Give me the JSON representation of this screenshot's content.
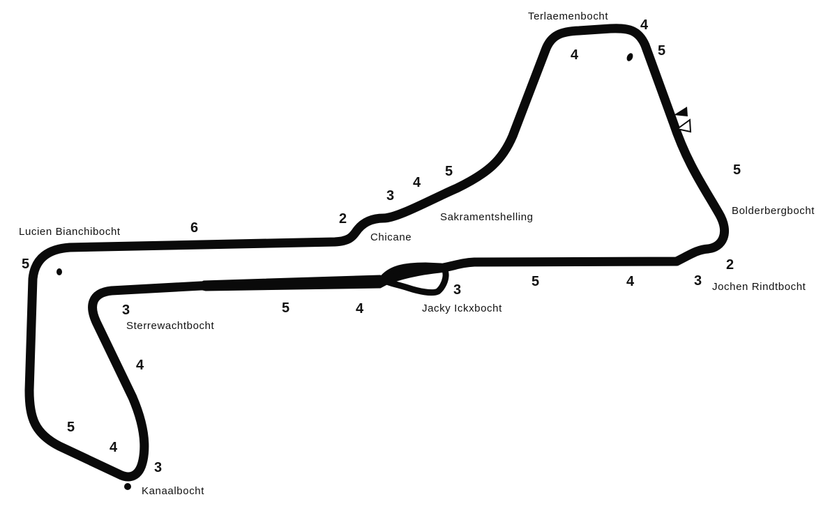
{
  "corners": {
    "terlaemenbocht": "Terlaemenbocht",
    "bolderbergbocht": "Bolderbergbocht",
    "jochen_rindtbocht": "Jochen Rindtbocht",
    "jacky_ickxbocht": "Jacky Ickxbocht",
    "sakramentshelling": "Sakramentshelling",
    "chicane": "Chicane",
    "lucien_bianchibocht": "Lucien Bianchibocht",
    "sterrewachtbocht": "Sterrewachtbocht",
    "kanaalbocht": "Kanaalbocht"
  },
  "gears": {
    "terlaemen_top": "4",
    "terlaemen_right": "5",
    "terlaemen_inner": "4",
    "bolderberg_straight": "5",
    "rindt_2": "2",
    "rindt_3": "3",
    "back_straight_4": "4",
    "back_straight_5": "5",
    "ickx_3": "3",
    "pit_straight_4": "4",
    "pit_straight_5": "5",
    "sterrewacht_3": "3",
    "esses_4": "4",
    "kanaal_3": "3",
    "kanaal_4": "4",
    "left_leg_5": "5",
    "bianchi_5": "5",
    "main_straight_6": "6",
    "chicane_2": "2",
    "sakrament_3": "3",
    "sakrament_4": "4",
    "sakrament_5": "5"
  },
  "colors": {
    "track": "#0a0a0a",
    "background": "#ffffff",
    "text": "#111111"
  },
  "icons": {
    "start_marker": "filled-triangle",
    "finish_marker": "outline-triangle",
    "marker_dot": "filled-ellipse"
  }
}
